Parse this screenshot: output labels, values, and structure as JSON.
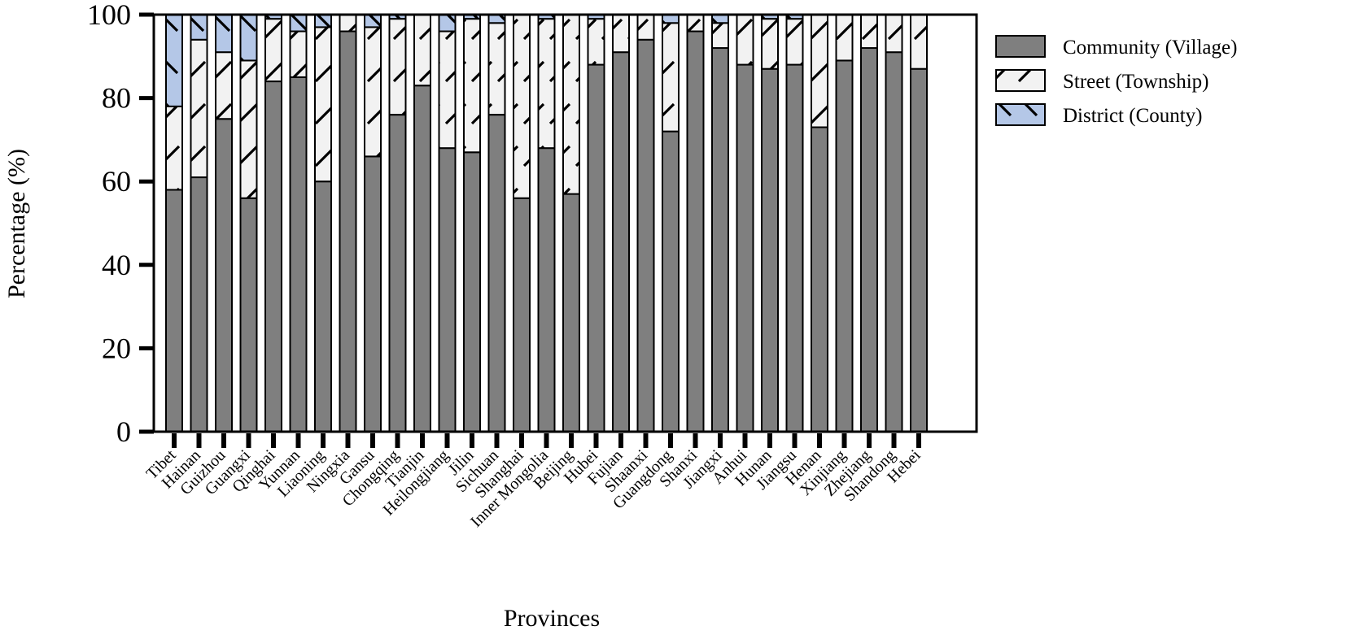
{
  "chart_data": {
    "type": "bar",
    "stacked": true,
    "xlabel": "Provinces",
    "ylabel": "Percentage (%)",
    "ylim": [
      0,
      100
    ],
    "yticks": [
      0,
      20,
      40,
      60,
      80,
      100
    ],
    "legend_position": "top-right",
    "categories": [
      "Tibet",
      "Hainan",
      "Guizhou",
      "Guangxi",
      "Qinghai",
      "Yunnan",
      "Liaoning",
      "Ningxia",
      "Gansu",
      "Chongqing",
      "Tianjin",
      "Heilongjiang",
      "Jilin",
      "Sichuan",
      "Shanghai",
      "Inner Mongolia",
      "Beijing",
      "Hubei",
      "Fujian",
      "Shaanxi",
      "Guangdong",
      "Shanxi",
      "Jiangxi",
      "Anhui",
      "Hunan",
      "Jiangsu",
      "Henan",
      "Xinjiang",
      "Zhejiang",
      "Shandong",
      "Hebei"
    ],
    "series": [
      {
        "name": "Community (Village)",
        "color": "#7f7f7f",
        "pattern": "solid",
        "values": [
          58,
          61,
          75,
          56,
          84,
          85,
          60,
          96,
          66,
          76,
          83,
          68,
          67,
          76,
          56,
          68,
          57,
          88,
          91,
          94,
          72,
          96,
          92,
          88,
          87,
          88,
          73,
          89,
          92,
          91,
          87
        ]
      },
      {
        "name": "Street (Township)",
        "color": "#f2f2f2",
        "pattern": "forward-hatch",
        "values": [
          20,
          33,
          16,
          33,
          15,
          11,
          37,
          4,
          31,
          23,
          17,
          28,
          32,
          22,
          44,
          31,
          43,
          11,
          9,
          6,
          26,
          4,
          6,
          12,
          12,
          11,
          27,
          11,
          8,
          9,
          13
        ]
      },
      {
        "name": "District (County)",
        "color": "#b4c7e7",
        "pattern": "back-hatch",
        "values": [
          22,
          6,
          9,
          11,
          1,
          4,
          3,
          0,
          3,
          1,
          0,
          4,
          1,
          2,
          0,
          1,
          0,
          1,
          0,
          0,
          2,
          0,
          2,
          0,
          1,
          1,
          0,
          0,
          0,
          0,
          0
        ]
      }
    ]
  }
}
